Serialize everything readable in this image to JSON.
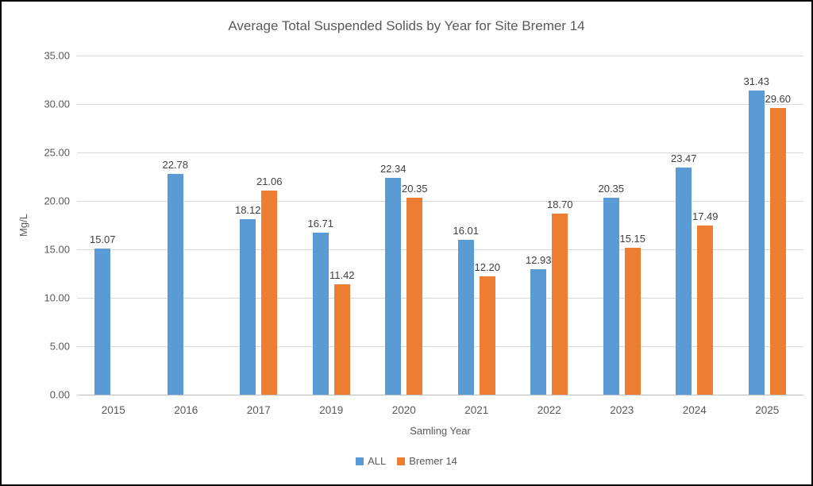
{
  "chart_data": {
    "type": "bar",
    "title": "Average Total Suspended Solids by Year for Site Bremer 14",
    "xlabel": "Samling Year",
    "ylabel": "Mg/L",
    "ylim": [
      0,
      35
    ],
    "ytick_step": 5,
    "yticks": [
      "35.00",
      "30.00",
      "25.00",
      "20.00",
      "15.00",
      "10.00",
      "5.00",
      "0.00"
    ],
    "grid": true,
    "legend_position": "bottom",
    "categories": [
      "2015",
      "2016",
      "2017",
      "2019",
      "2020",
      "2021",
      "2022",
      "2023",
      "2024",
      "2025"
    ],
    "series": [
      {
        "name": "ALL",
        "color": "#5B9BD5",
        "values": [
          15.07,
          22.78,
          18.12,
          16.71,
          22.34,
          16.01,
          12.93,
          20.35,
          23.47,
          31.43
        ]
      },
      {
        "name": "Bremer 14",
        "color": "#ED7D31",
        "values": [
          null,
          null,
          21.06,
          11.42,
          20.35,
          12.2,
          18.7,
          15.15,
          17.49,
          29.6
        ]
      }
    ]
  },
  "colors": {
    "series_all": "#5B9BD5",
    "series_bremer14": "#ED7D31",
    "gridline": "#D9D9D9",
    "axis_line": "#BFBFBF",
    "text": "#595959",
    "data_label": "#404040",
    "border": "#000000",
    "background": "#FFFFFF"
  }
}
